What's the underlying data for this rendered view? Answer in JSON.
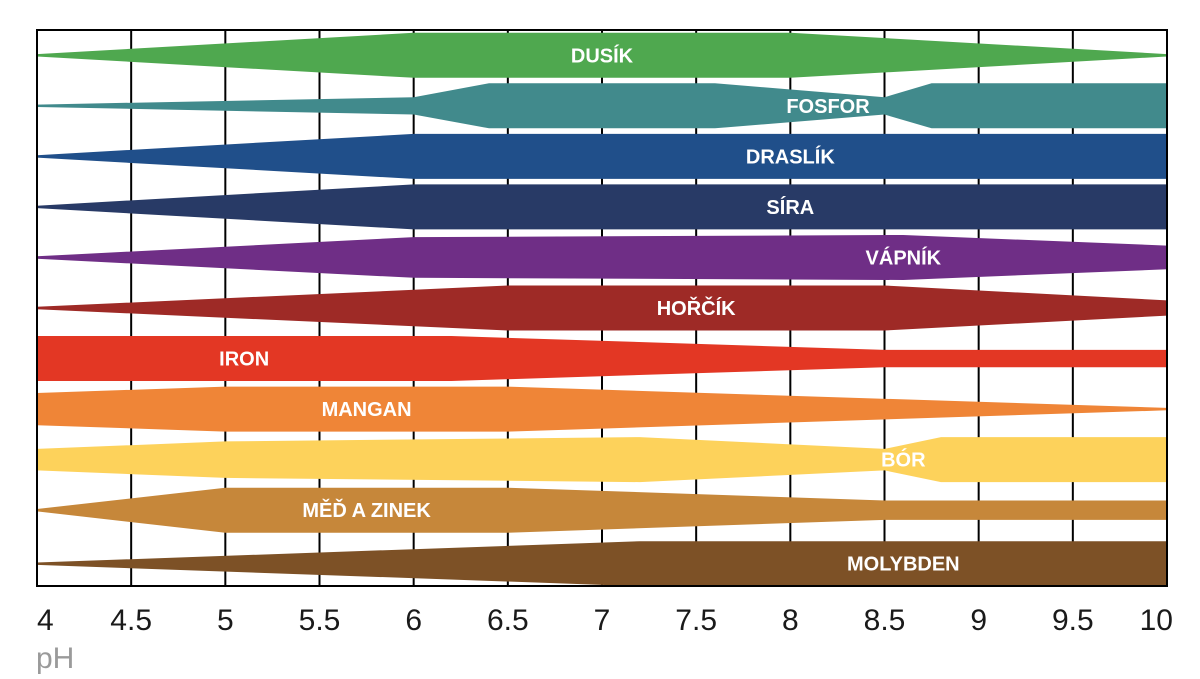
{
  "chart_data": {
    "type": "area",
    "xlabel": "pH",
    "xlim": [
      4,
      10
    ],
    "x_ticks": [
      "4",
      "4.5",
      "5",
      "5.5",
      "6",
      "6.5",
      "7",
      "7.5",
      "8",
      "8.5",
      "9",
      "9.5",
      "10"
    ],
    "grid": true,
    "series": [
      {
        "name": "DUSÍK",
        "color": "#4fa84f",
        "availability": [
          [
            4.0,
            0
          ],
          [
            6.0,
            1
          ],
          [
            8.0,
            1
          ],
          [
            10.0,
            0
          ]
        ]
      },
      {
        "name": "FOSFOR",
        "color": "#418a8c",
        "availability": [
          [
            4.0,
            0
          ],
          [
            6.0,
            0.35
          ],
          [
            6.4,
            1
          ],
          [
            7.6,
            1
          ],
          [
            8.5,
            0.35
          ],
          [
            8.75,
            1
          ],
          [
            10.0,
            1
          ]
        ]
      },
      {
        "name": "DRASLÍK",
        "color": "#204f8a",
        "availability": [
          [
            4.0,
            0
          ],
          [
            6.0,
            1
          ],
          [
            10.0,
            1
          ]
        ]
      },
      {
        "name": "SÍRA",
        "color": "#283a66",
        "availability": [
          [
            4.0,
            0
          ],
          [
            6.0,
            1
          ],
          [
            10.0,
            1
          ]
        ]
      },
      {
        "name": "VÁPNÍK",
        "color": "#6f2e86",
        "availability": [
          [
            4.0,
            0
          ],
          [
            6.0,
            0.9
          ],
          [
            8.6,
            1
          ],
          [
            10.0,
            0.5
          ]
        ]
      },
      {
        "name": "HOŘČÍK",
        "color": "#9e2a26",
        "availability": [
          [
            4.0,
            0
          ],
          [
            6.5,
            1
          ],
          [
            8.5,
            1
          ],
          [
            10.0,
            0.3
          ]
        ]
      },
      {
        "name": "IRON",
        "color": "#e33724",
        "availability": [
          [
            4.0,
            1
          ],
          [
            6.2,
            1
          ],
          [
            8.5,
            0.35
          ],
          [
            10.0,
            0.35
          ]
        ]
      },
      {
        "name": "MANGAN",
        "color": "#ef8537",
        "availability": [
          [
            4.0,
            0.7
          ],
          [
            5.0,
            1
          ],
          [
            6.5,
            1
          ],
          [
            10.0,
            0
          ]
        ]
      },
      {
        "name": "BÓR",
        "color": "#fdd25b",
        "availability": [
          [
            4.0,
            0.45
          ],
          [
            5.0,
            0.8
          ],
          [
            7.2,
            1
          ],
          [
            8.5,
            0.45
          ],
          [
            8.8,
            1
          ],
          [
            10.0,
            1
          ]
        ]
      },
      {
        "name": "MĚĎ A ZINEK",
        "color": "#c6873a",
        "availability": [
          [
            4.0,
            0
          ],
          [
            5.0,
            1
          ],
          [
            6.5,
            1
          ],
          [
            8.5,
            0.4
          ],
          [
            10.0,
            0.4
          ]
        ]
      },
      {
        "name": "MOLYBDEN",
        "color": "#7d5126",
        "availability": [
          [
            4.0,
            0
          ],
          [
            7.2,
            1
          ],
          [
            10.0,
            1
          ]
        ]
      }
    ]
  }
}
